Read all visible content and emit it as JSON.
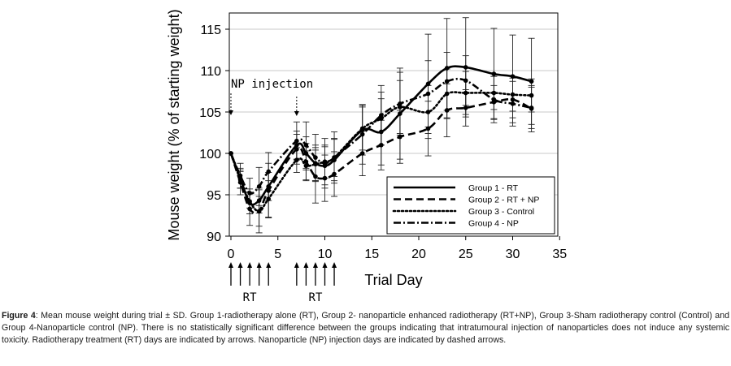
{
  "chart_data": {
    "type": "line",
    "xlabel": "Trial Day",
    "ylabel": "Mouse weight (% of starting weight)",
    "xlim": [
      0,
      35
    ],
    "ylim": [
      90,
      117
    ],
    "xticks": [
      0,
      5,
      10,
      15,
      20,
      25,
      30,
      35
    ],
    "yticks": [
      90,
      95,
      100,
      105,
      110,
      115
    ],
    "grid": "horizontal",
    "legend_position": "bottom-right",
    "x": [
      0,
      1,
      2,
      3,
      4,
      7,
      8,
      9,
      10,
      11,
      14,
      16,
      18,
      21,
      23,
      25,
      28,
      30,
      32
    ],
    "series": [
      {
        "name": "Group 1 - RT",
        "style": "solid",
        "values": [
          100,
          97.0,
          94.0,
          94.3,
          96.0,
          101.0,
          100.0,
          98.8,
          98.5,
          99.2,
          102.8,
          102.6,
          104.8,
          108.4,
          110.3,
          110.4,
          109.6,
          109.3,
          108.7
        ],
        "errors": [
          0,
          1.2,
          1.3,
          1.5,
          1.7,
          1.7,
          2.0,
          2.2,
          2.3,
          2.5,
          3.0,
          4.0,
          5.5,
          6.0,
          6.0,
          6.0,
          5.5,
          5.0,
          5.2
        ]
      },
      {
        "name": "Group 2 - RT + NP",
        "style": "dashed",
        "values": [
          100,
          96.5,
          93.3,
          93.0,
          95.5,
          100.5,
          99.0,
          97.2,
          97.0,
          97.5,
          100.0,
          101.0,
          102.0,
          103.0,
          105.2,
          105.5,
          106.2,
          106.5,
          105.4
        ],
        "errors": [
          0,
          1.5,
          2.0,
          2.6,
          3.3,
          1.8,
          2.2,
          3.2,
          2.8,
          2.7,
          2.7,
          3.0,
          3.2,
          3.3,
          3.2,
          2.2,
          2.0,
          2.8,
          2.8
        ]
      },
      {
        "name": "Group 3 - Control",
        "style": "dotted",
        "values": [
          100,
          96.8,
          94.2,
          93.0,
          94.5,
          99.2,
          98.5,
          98.7,
          99.0,
          99.5,
          103.0,
          104.2,
          105.6,
          105.0,
          107.2,
          107.3,
          107.3,
          107.1,
          107.0
        ],
        "errors": [
          0,
          1.0,
          1.5,
          1.8,
          2.2,
          1.5,
          1.8,
          2.0,
          2.0,
          2.3,
          2.6,
          3.2,
          3.2,
          3.2,
          3.0,
          2.6,
          2.0,
          2.0,
          2.0
        ]
      },
      {
        "name": "Group 4 - NP",
        "style": "dashdot",
        "values": [
          100,
          97.3,
          95.2,
          96.0,
          97.8,
          101.5,
          101.0,
          99.5,
          98.8,
          99.5,
          102.3,
          104.6,
          106.0,
          107.2,
          108.7,
          108.8,
          106.5,
          106.0,
          105.5
        ],
        "errors": [
          0,
          1.5,
          1.8,
          2.3,
          2.3,
          2.3,
          2.8,
          2.8,
          3.0,
          3.1,
          3.6,
          3.6,
          3.8,
          4.0,
          3.5,
          3.0,
          2.8,
          2.7,
          2.5
        ]
      }
    ],
    "annotations": [
      {
        "text": "NP injection",
        "np_injection_days": [
          0,
          7
        ]
      },
      {
        "text": "RT",
        "rt_days": [
          0,
          1,
          2,
          3,
          4
        ]
      },
      {
        "text": "RT",
        "rt_days": [
          7,
          8,
          9,
          10,
          11
        ]
      }
    ]
  },
  "caption": {
    "label": "Figure 4",
    "text": ": Mean mouse weight during trial ± SD. Group 1-radiotherapy alone (RT), Group 2- nanoparticle enhanced radiotherapy (RT+NP), Group 3-Sham radiotherapy control (Control) and Group 4-Nanoparticle control (NP). There is no statistically significant difference between the groups indicating that intratumoural injection of nanoparticles does not induce any systemic toxicity. Radiotherapy treatment (RT) days are indicated by arrows. Nanoparticle (NP) injection days are indicated by dashed arrows."
  }
}
